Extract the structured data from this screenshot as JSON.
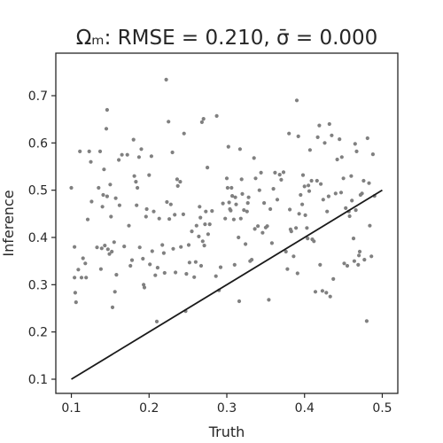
{
  "chart_data": {
    "type": "scatter",
    "title": "Ωₘ: RMSE = 0.210, σ̄ = 0.000",
    "xlabel": "Truth",
    "ylabel": "Inference",
    "xlim": [
      0.08,
      0.52
    ],
    "ylim": [
      0.07,
      0.79
    ],
    "xticks": [
      "0.1",
      "0.2",
      "0.3",
      "0.4",
      "0.5"
    ],
    "yticks": [
      "0.1",
      "0.2",
      "0.3",
      "0.4",
      "0.5",
      "0.6",
      "0.7"
    ],
    "grid": false,
    "point_color": "#808080",
    "line_color": "#1a1a1a",
    "reference_line": {
      "x": [
        0.1,
        0.5
      ],
      "y": [
        0.1,
        0.5
      ]
    },
    "points": [
      [
        0.1,
        0.505
      ],
      [
        0.104,
        0.38
      ],
      [
        0.104,
        0.315
      ],
      [
        0.105,
        0.283
      ],
      [
        0.106,
        0.263
      ],
      [
        0.109,
        0.332
      ],
      [
        0.111,
        0.582
      ],
      [
        0.113,
        0.315
      ],
      [
        0.115,
        0.356
      ],
      [
        0.118,
        0.345
      ],
      [
        0.119,
        0.315
      ],
      [
        0.121,
        0.438
      ],
      [
        0.123,
        0.582
      ],
      [
        0.125,
        0.56
      ],
      [
        0.126,
        0.476
      ],
      [
        0.133,
        0.379
      ],
      [
        0.135,
        0.505
      ],
      [
        0.137,
        0.582
      ],
      [
        0.138,
        0.333
      ],
      [
        0.139,
        0.377
      ],
      [
        0.14,
        0.465
      ],
      [
        0.141,
        0.49
      ],
      [
        0.142,
        0.544
      ],
      [
        0.143,
        0.383
      ],
      [
        0.145,
        0.63
      ],
      [
        0.146,
        0.67
      ],
      [
        0.146,
        0.487
      ],
      [
        0.147,
        0.375
      ],
      [
        0.149,
        0.365
      ],
      [
        0.15,
        0.512
      ],
      [
        0.151,
        0.444
      ],
      [
        0.152,
        0.37
      ],
      [
        0.153,
        0.252
      ],
      [
        0.155,
        0.39
      ],
      [
        0.156,
        0.285
      ],
      [
        0.157,
        0.483
      ],
      [
        0.158,
        0.321
      ],
      [
        0.161,
        0.564
      ],
      [
        0.162,
        0.468
      ],
      [
        0.165,
        0.575
      ],
      [
        0.168,
        0.381
      ],
      [
        0.172,
        0.575
      ],
      [
        0.174,
        0.425
      ],
      [
        0.176,
        0.34
      ],
      [
        0.178,
        0.352
      ],
      [
        0.18,
        0.607
      ],
      [
        0.181,
        0.53
      ],
      [
        0.183,
        0.518
      ],
      [
        0.184,
        0.468
      ],
      [
        0.185,
        0.505
      ],
      [
        0.187,
        0.57
      ],
      [
        0.188,
        0.379
      ],
      [
        0.19,
        0.587
      ],
      [
        0.192,
        0.355
      ],
      [
        0.193,
        0.3
      ],
      [
        0.194,
        0.294
      ],
      [
        0.196,
        0.444
      ],
      [
        0.197,
        0.46
      ],
      [
        0.2,
        0.532
      ],
      [
        0.201,
        0.343
      ],
      [
        0.203,
        0.572
      ],
      [
        0.204,
        0.371
      ],
      [
        0.206,
        0.455
      ],
      [
        0.208,
        0.32
      ],
      [
        0.21,
        0.222
      ],
      [
        0.211,
        0.336
      ],
      [
        0.213,
        0.44
      ],
      [
        0.217,
        0.384
      ],
      [
        0.219,
        0.367
      ],
      [
        0.22,
        0.325
      ],
      [
        0.222,
        0.734
      ],
      [
        0.223,
        0.475
      ],
      [
        0.225,
        0.645
      ],
      [
        0.226,
        0.439
      ],
      [
        0.228,
        0.47
      ],
      [
        0.23,
        0.58
      ],
      [
        0.231,
        0.376
      ],
      [
        0.233,
        0.448
      ],
      [
        0.234,
        0.326
      ],
      [
        0.236,
        0.523
      ],
      [
        0.237,
        0.509
      ],
      [
        0.24,
        0.518
      ],
      [
        0.241,
        0.38
      ],
      [
        0.244,
        0.449
      ],
      [
        0.245,
        0.62
      ],
      [
        0.247,
        0.244
      ],
      [
        0.248,
        0.323
      ],
      [
        0.251,
        0.384
      ],
      [
        0.252,
        0.347
      ],
      [
        0.255,
        0.413
      ],
      [
        0.258,
        0.316
      ],
      [
        0.26,
        0.348
      ],
      [
        0.261,
        0.425
      ],
      [
        0.264,
        0.402
      ],
      [
        0.265,
        0.465
      ],
      [
        0.266,
        0.442
      ],
      [
        0.267,
        0.34
      ],
      [
        0.268,
        0.644
      ],
      [
        0.269,
        0.392
      ],
      [
        0.27,
        0.651
      ],
      [
        0.271,
        0.383
      ],
      [
        0.272,
        0.428
      ],
      [
        0.273,
        0.455
      ],
      [
        0.275,
        0.548
      ],
      [
        0.276,
        0.407
      ],
      [
        0.278,
        0.428
      ],
      [
        0.281,
        0.456
      ],
      [
        0.286,
        0.318
      ],
      [
        0.287,
        0.657
      ],
      [
        0.29,
        0.288
      ],
      [
        0.292,
        0.337
      ],
      [
        0.295,
        0.472
      ],
      [
        0.298,
        0.44
      ],
      [
        0.3,
        0.525
      ],
      [
        0.301,
        0.505
      ],
      [
        0.302,
        0.592
      ],
      [
        0.303,
        0.474
      ],
      [
        0.304,
        0.46
      ],
      [
        0.305,
        0.457
      ],
      [
        0.306,
        0.505
      ],
      [
        0.307,
        0.488
      ],
      [
        0.309,
        0.438
      ],
      [
        0.31,
        0.342
      ],
      [
        0.311,
        0.485
      ],
      [
        0.312,
        0.47
      ],
      [
        0.315,
        0.4
      ],
      [
        0.316,
        0.265
      ],
      [
        0.317,
        0.587
      ],
      [
        0.318,
        0.44
      ],
      [
        0.319,
        0.523
      ],
      [
        0.32,
        0.492
      ],
      [
        0.322,
        0.458
      ],
      [
        0.324,
        0.386
      ],
      [
        0.326,
        0.455
      ],
      [
        0.327,
        0.473
      ],
      [
        0.328,
        0.485
      ],
      [
        0.33,
        0.35
      ],
      [
        0.332,
        0.353
      ],
      [
        0.335,
        0.568
      ],
      [
        0.336,
        0.418
      ],
      [
        0.337,
        0.525
      ],
      [
        0.34,
        0.424
      ],
      [
        0.342,
        0.5
      ],
      [
        0.344,
        0.537
      ],
      [
        0.346,
        0.41
      ],
      [
        0.348,
        0.473
      ],
      [
        0.35,
        0.421
      ],
      [
        0.352,
        0.424
      ],
      [
        0.354,
        0.268
      ],
      [
        0.356,
        0.46
      ],
      [
        0.358,
        0.388
      ],
      [
        0.36,
        0.503
      ],
      [
        0.362,
        0.537
      ],
      [
        0.365,
        0.48
      ],
      [
        0.368,
        0.533
      ],
      [
        0.37,
        0.522
      ],
      [
        0.373,
        0.538
      ],
      [
        0.376,
        0.37
      ],
      [
        0.378,
        0.333
      ],
      [
        0.38,
        0.62
      ],
      [
        0.381,
        0.459
      ],
      [
        0.382,
        0.417
      ],
      [
        0.383,
        0.413
      ],
      [
        0.386,
        0.36
      ],
      [
        0.389,
        0.42
      ],
      [
        0.39,
        0.69
      ],
      [
        0.391,
        0.324
      ],
      [
        0.392,
        0.614
      ],
      [
        0.393,
        0.45
      ],
      [
        0.395,
        0.49
      ],
      [
        0.397,
        0.47
      ],
      [
        0.398,
        0.532
      ],
      [
        0.4,
        0.508
      ],
      [
        0.401,
        0.447
      ],
      [
        0.403,
        0.42
      ],
      [
        0.404,
        0.398
      ],
      [
        0.405,
        0.51
      ],
      [
        0.406,
        0.498
      ],
      [
        0.407,
        0.585
      ],
      [
        0.409,
        0.52
      ],
      [
        0.41,
        0.396
      ],
      [
        0.412,
        0.392
      ],
      [
        0.414,
        0.285
      ],
      [
        0.416,
        0.52
      ],
      [
        0.417,
        0.612
      ],
      [
        0.419,
        0.637
      ],
      [
        0.42,
        0.342
      ],
      [
        0.421,
        0.513
      ],
      [
        0.423,
        0.287
      ],
      [
        0.424,
        0.48
      ],
      [
        0.426,
        0.6
      ],
      [
        0.428,
        0.283
      ],
      [
        0.429,
        0.455
      ],
      [
        0.431,
        0.487
      ],
      [
        0.432,
        0.64
      ],
      [
        0.433,
        0.275
      ],
      [
        0.435,
        0.616
      ],
      [
        0.437,
        0.312
      ],
      [
        0.44,
        0.493
      ],
      [
        0.442,
        0.565
      ],
      [
        0.445,
        0.608
      ],
      [
        0.447,
        0.495
      ],
      [
        0.448,
        0.57
      ],
      [
        0.45,
        0.525
      ],
      [
        0.451,
        0.345
      ],
      [
        0.453,
        0.462
      ],
      [
        0.455,
        0.34
      ],
      [
        0.457,
        0.455
      ],
      [
        0.458,
        0.445
      ],
      [
        0.46,
        0.53
      ],
      [
        0.461,
        0.478
      ],
      [
        0.463,
        0.398
      ],
      [
        0.464,
        0.35
      ],
      [
        0.465,
        0.598
      ],
      [
        0.466,
        0.458
      ],
      [
        0.467,
        0.582
      ],
      [
        0.469,
        0.342
      ],
      [
        0.47,
        0.362
      ],
      [
        0.471,
        0.37
      ],
      [
        0.472,
        0.49
      ],
      [
        0.474,
        0.493
      ],
      [
        0.476,
        0.52
      ],
      [
        0.477,
        0.353
      ],
      [
        0.48,
        0.223
      ],
      [
        0.481,
        0.61
      ],
      [
        0.483,
        0.515
      ],
      [
        0.484,
        0.425
      ],
      [
        0.486,
        0.36
      ],
      [
        0.488,
        0.576
      ],
      [
        0.49,
        0.488
      ]
    ]
  }
}
